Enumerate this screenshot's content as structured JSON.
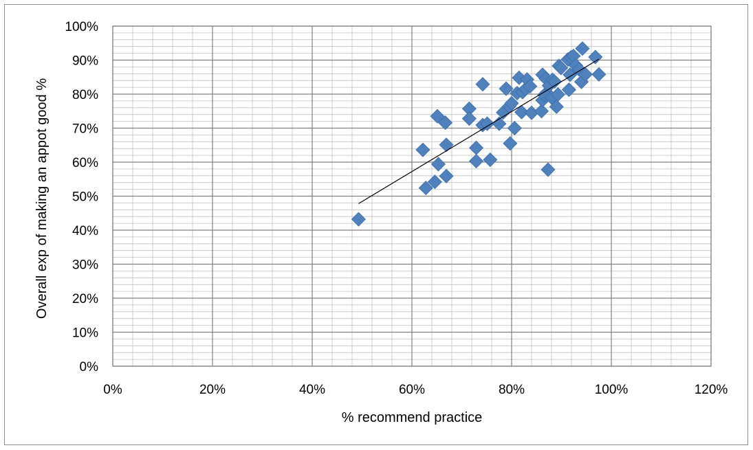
{
  "chart_data": {
    "type": "scatter",
    "title": "",
    "xlabel": "% recommend practice",
    "ylabel": "Overall exp of making an appot good %",
    "xlim": [
      0,
      1.2
    ],
    "ylim": [
      0,
      1.0
    ],
    "x_ticks": [
      "0%",
      "20%",
      "40%",
      "60%",
      "80%",
      "100%",
      "120%"
    ],
    "y_ticks": [
      "0%",
      "10%",
      "20%",
      "30%",
      "40%",
      "50%",
      "60%",
      "70%",
      "80%",
      "90%",
      "100%"
    ],
    "grid": "major and minor",
    "legend": "none",
    "marker": "diamond",
    "marker_color": "#4f81bd",
    "trendline": {
      "type": "linear",
      "x_range": [
        0.493,
        0.975
      ],
      "y_start": 0.478,
      "y_end": 0.903,
      "color": "#000000"
    },
    "points": [
      [
        0.493,
        0.432
      ],
      [
        0.622,
        0.636
      ],
      [
        0.628,
        0.524
      ],
      [
        0.646,
        0.542
      ],
      [
        0.651,
        0.735
      ],
      [
        0.653,
        0.594
      ],
      [
        0.667,
        0.716
      ],
      [
        0.669,
        0.651
      ],
      [
        0.669,
        0.559
      ],
      [
        0.715,
        0.757
      ],
      [
        0.715,
        0.728
      ],
      [
        0.729,
        0.642
      ],
      [
        0.729,
        0.603
      ],
      [
        0.742,
        0.829
      ],
      [
        0.742,
        0.709
      ],
      [
        0.751,
        0.713
      ],
      [
        0.757,
        0.607
      ],
      [
        0.775,
        0.713
      ],
      [
        0.783,
        0.746
      ],
      [
        0.789,
        0.816
      ],
      [
        0.795,
        0.764
      ],
      [
        0.797,
        0.655
      ],
      [
        0.8,
        0.773
      ],
      [
        0.806,
        0.7
      ],
      [
        0.811,
        0.803
      ],
      [
        0.815,
        0.848
      ],
      [
        0.82,
        0.747
      ],
      [
        0.822,
        0.806
      ],
      [
        0.828,
        0.815
      ],
      [
        0.831,
        0.843
      ],
      [
        0.837,
        0.823
      ],
      [
        0.84,
        0.745
      ],
      [
        0.86,
        0.75
      ],
      [
        0.862,
        0.782
      ],
      [
        0.862,
        0.857
      ],
      [
        0.866,
        0.798
      ],
      [
        0.869,
        0.845
      ],
      [
        0.873,
        0.578
      ],
      [
        0.875,
        0.825
      ],
      [
        0.88,
        0.79
      ],
      [
        0.882,
        0.842
      ],
      [
        0.886,
        0.837
      ],
      [
        0.89,
        0.763
      ],
      [
        0.893,
        0.799
      ],
      [
        0.895,
        0.883
      ],
      [
        0.899,
        0.877
      ],
      [
        0.913,
        0.902
      ],
      [
        0.915,
        0.813
      ],
      [
        0.917,
        0.857
      ],
      [
        0.919,
        0.908
      ],
      [
        0.924,
        0.912
      ],
      [
        0.929,
        0.884
      ],
      [
        0.935,
        0.873
      ],
      [
        0.94,
        0.836
      ],
      [
        0.942,
        0.934
      ],
      [
        0.948,
        0.858
      ],
      [
        0.968,
        0.909
      ],
      [
        0.975,
        0.858
      ]
    ]
  }
}
